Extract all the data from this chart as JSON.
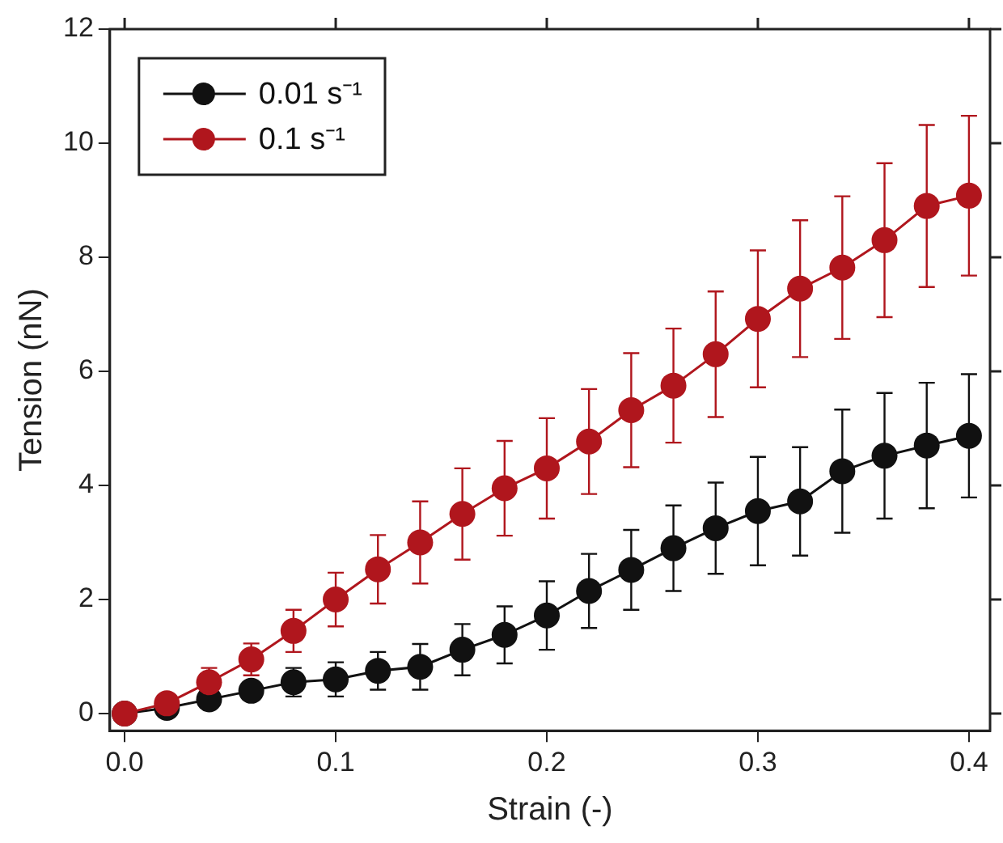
{
  "chart_data": {
    "type": "line",
    "xlabel": "Strain (-)",
    "ylabel": "Tension (nN)",
    "x": [
      0,
      0.02,
      0.04,
      0.06,
      0.08,
      0.1,
      0.12,
      0.14,
      0.16,
      0.18,
      0.2,
      0.22,
      0.24,
      0.26,
      0.28,
      0.3,
      0.32,
      0.34,
      0.36,
      0.38,
      0.4
    ],
    "series": [
      {
        "name": "0.01 s⁻¹",
        "color": "#111111",
        "values": [
          0,
          0.1,
          0.25,
          0.4,
          0.55,
          0.6,
          0.75,
          0.82,
          1.12,
          1.38,
          1.72,
          2.15,
          2.52,
          2.9,
          3.25,
          3.55,
          3.72,
          4.25,
          4.52,
          4.7,
          4.87
        ],
        "errors": [
          null,
          null,
          null,
          null,
          0.25,
          0.3,
          0.33,
          0.4,
          0.45,
          0.5,
          0.6,
          0.65,
          0.7,
          0.75,
          0.8,
          0.95,
          0.95,
          1.08,
          1.1,
          1.1,
          1.08
        ]
      },
      {
        "name": "0.1 s⁻¹",
        "color": "#b0161d",
        "values": [
          0,
          0.18,
          0.55,
          0.95,
          1.45,
          2.0,
          2.53,
          3.0,
          3.5,
          3.95,
          4.3,
          4.77,
          5.32,
          5.75,
          6.3,
          6.92,
          7.45,
          7.82,
          8.3,
          8.9,
          9.08
        ],
        "errors": [
          null,
          null,
          0.25,
          0.28,
          0.37,
          0.47,
          0.6,
          0.72,
          0.8,
          0.83,
          0.88,
          0.92,
          1.0,
          1.0,
          1.1,
          1.2,
          1.2,
          1.25,
          1.35,
          1.42,
          1.4
        ]
      }
    ],
    "xlim": [
      -0.007,
      0.41
    ],
    "xticks": [
      {
        "value": 0,
        "label": "0.0"
      },
      0.1,
      0.2,
      0.3,
      0.4
    ],
    "ylim": [
      -0.3,
      12
    ],
    "yticks": [
      0,
      2,
      4,
      6,
      8,
      10,
      12
    ],
    "grid": false,
    "legend": "top left",
    "marker": "circle",
    "line_style": "solid"
  }
}
